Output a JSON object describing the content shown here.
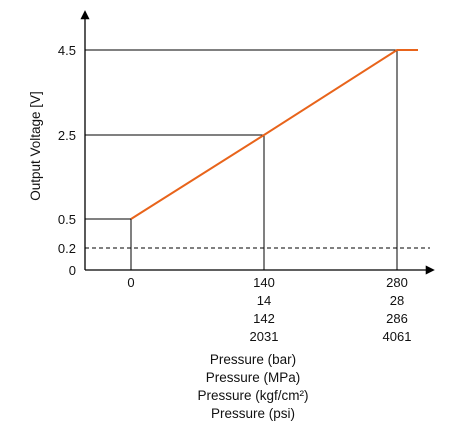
{
  "chart_data": {
    "type": "line",
    "title": "",
    "ylabel": "Output Voltage [V]",
    "ylim": [
      0,
      4.5
    ],
    "y_ticks": [
      "4.5",
      "2.5",
      "0.5",
      "0.2",
      "0"
    ],
    "x_ticks": [
      {
        "lines": [
          "0"
        ]
      },
      {
        "lines": [
          "140",
          "14",
          "142",
          "2031"
        ]
      },
      {
        "lines": [
          "280",
          "28",
          "286",
          "4061"
        ]
      }
    ],
    "xlabels": [
      "Pressure (bar)",
      "Pressure (MPa)",
      "Pressure (kgf/cm²)",
      "Pressure (psi)"
    ],
    "series": [
      {
        "x_unit": "bar",
        "points": [
          [
            0,
            0.5
          ],
          [
            140,
            2.5
          ],
          [
            280,
            4.5
          ]
        ],
        "color": "#e8641b"
      }
    ],
    "reference_lines": [
      {
        "type": "horizontal",
        "y": 0.2,
        "style": "dashed"
      }
    ],
    "guide_lines": [
      {
        "x": 0,
        "y": 0.5
      },
      {
        "x": 140,
        "y": 2.5
      },
      {
        "x": 280,
        "y": 4.5
      }
    ],
    "colors": {
      "series": "#e8641b",
      "axes": "#000000"
    }
  }
}
